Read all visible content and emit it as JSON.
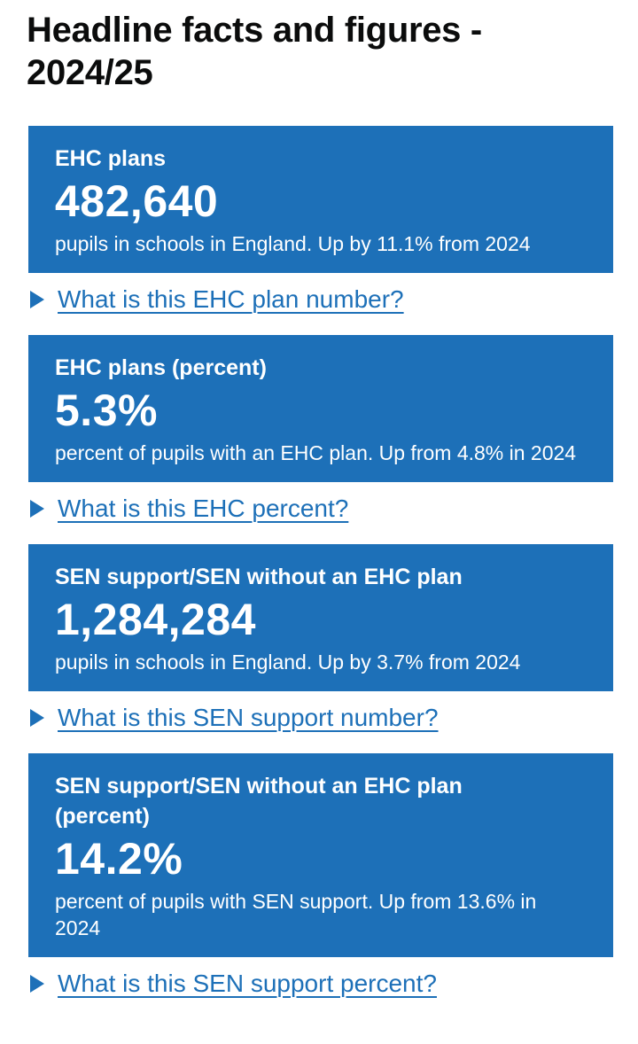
{
  "colors": {
    "brand_blue": "#1d70b8",
    "heading_text": "#0b0c0c",
    "tile_text": "#ffffff"
  },
  "header": {
    "title": "Headline facts and figures - 2024/25"
  },
  "tiles": [
    {
      "heading": "EHC plans",
      "value": "482,640",
      "description": "pupils in schools in England. Up by 11.1% from 2024",
      "details_label": "What is this EHC plan number?"
    },
    {
      "heading": "EHC plans (percent)",
      "value": "5.3%",
      "description": "percent of pupils with an EHC plan. Up from 4.8% in 2024",
      "details_label": "What is this EHC percent?"
    },
    {
      "heading": "SEN support/SEN without an EHC plan",
      "value": "1,284,284",
      "description": "pupils in schools in England. Up by 3.7% from 2024",
      "details_label": "What is this SEN support number?"
    },
    {
      "heading": "SEN support/SEN without an EHC plan (percent)",
      "value": "14.2%",
      "description": "percent of pupils with SEN support. Up from 13.6% in 2024",
      "details_label": "What is this SEN support percent?"
    }
  ]
}
